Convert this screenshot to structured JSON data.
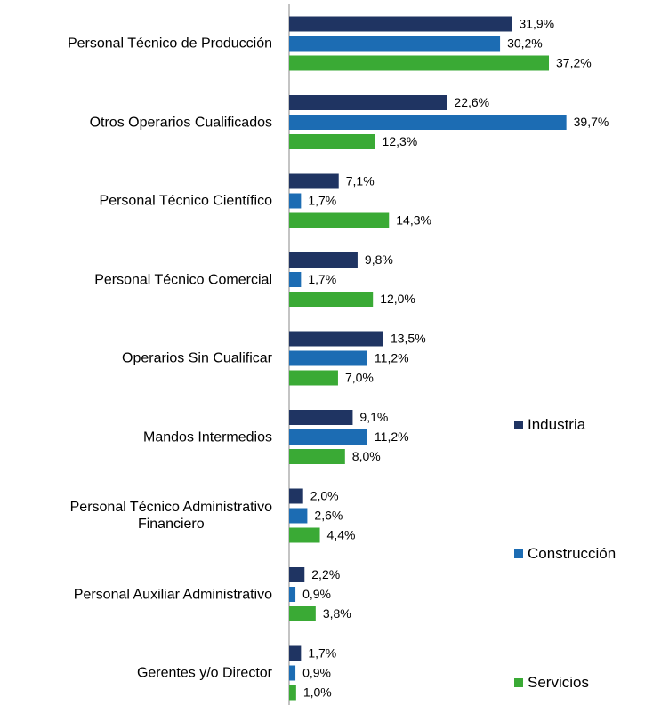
{
  "chart_data": {
    "type": "hbar",
    "categories": [
      "Personal Técnico de Producción",
      "Otros Operarios Cualificados",
      "Personal Técnico Científico",
      "Personal Técnico Comercial",
      "Operarios Sin Cualificar",
      "Mandos Intermedios",
      "Personal Técnico Administrativo\nFinanciero",
      "Personal Auxiliar Administrativo",
      "Gerentes y/o Director"
    ],
    "series": [
      {
        "name": "Industria",
        "color": "#1f3462",
        "values": [
          31.9,
          22.6,
          7.1,
          9.8,
          13.5,
          9.1,
          2.0,
          2.2,
          1.7
        ],
        "value_labels": [
          "31,9%",
          "22,6%",
          "7,1%",
          "9,8%",
          "13,5%",
          "9,1%",
          "2,0%",
          "2,2%",
          "1,7%"
        ]
      },
      {
        "name": "Construcción",
        "color": "#1c6cb3",
        "values": [
          30.2,
          39.7,
          1.7,
          1.7,
          11.2,
          11.2,
          2.6,
          0.9,
          0.9
        ],
        "value_labels": [
          "30,2%",
          "39,7%",
          "1,7%",
          "1,7%",
          "11,2%",
          "11,2%",
          "2,6%",
          "0,9%",
          "0,9%"
        ]
      },
      {
        "name": "Servicios",
        "color": "#3aaa35",
        "values": [
          37.2,
          12.3,
          14.3,
          12.0,
          7.0,
          8.0,
          4.4,
          3.8,
          1.0
        ],
        "value_labels": [
          "37,2%",
          "12,3%",
          "14,3%",
          "12,0%",
          "7,0%",
          "8,0%",
          "4,4%",
          "3,8%",
          "1,0%"
        ]
      }
    ],
    "legend": "right"
  }
}
